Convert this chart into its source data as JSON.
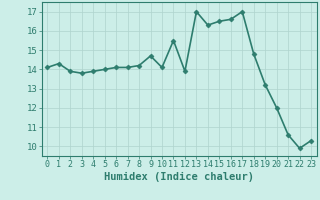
{
  "x": [
    0,
    1,
    2,
    3,
    4,
    5,
    6,
    7,
    8,
    9,
    10,
    11,
    12,
    13,
    14,
    15,
    16,
    17,
    18,
    19,
    20,
    21,
    22,
    23
  ],
  "y": [
    14.1,
    14.3,
    13.9,
    13.8,
    13.9,
    14.0,
    14.1,
    14.1,
    14.2,
    14.7,
    14.1,
    15.5,
    13.9,
    17.0,
    16.3,
    16.5,
    16.6,
    17.0,
    14.8,
    13.2,
    12.0,
    10.6,
    9.9,
    10.3
  ],
  "line_color": "#2e7d6e",
  "marker": "D",
  "markersize": 2.5,
  "bg_color": "#cceee8",
  "grid_color": "#afd4ce",
  "xlabel": "Humidex (Indice chaleur)",
  "xlabel_fontsize": 7.5,
  "ylabel_ticks": [
    10,
    11,
    12,
    13,
    14,
    15,
    16,
    17
  ],
  "xlim": [
    -0.5,
    23.5
  ],
  "ylim": [
    9.5,
    17.5
  ],
  "xtick_fontsize": 6,
  "ytick_fontsize": 6.5,
  "linewidth": 1.2
}
